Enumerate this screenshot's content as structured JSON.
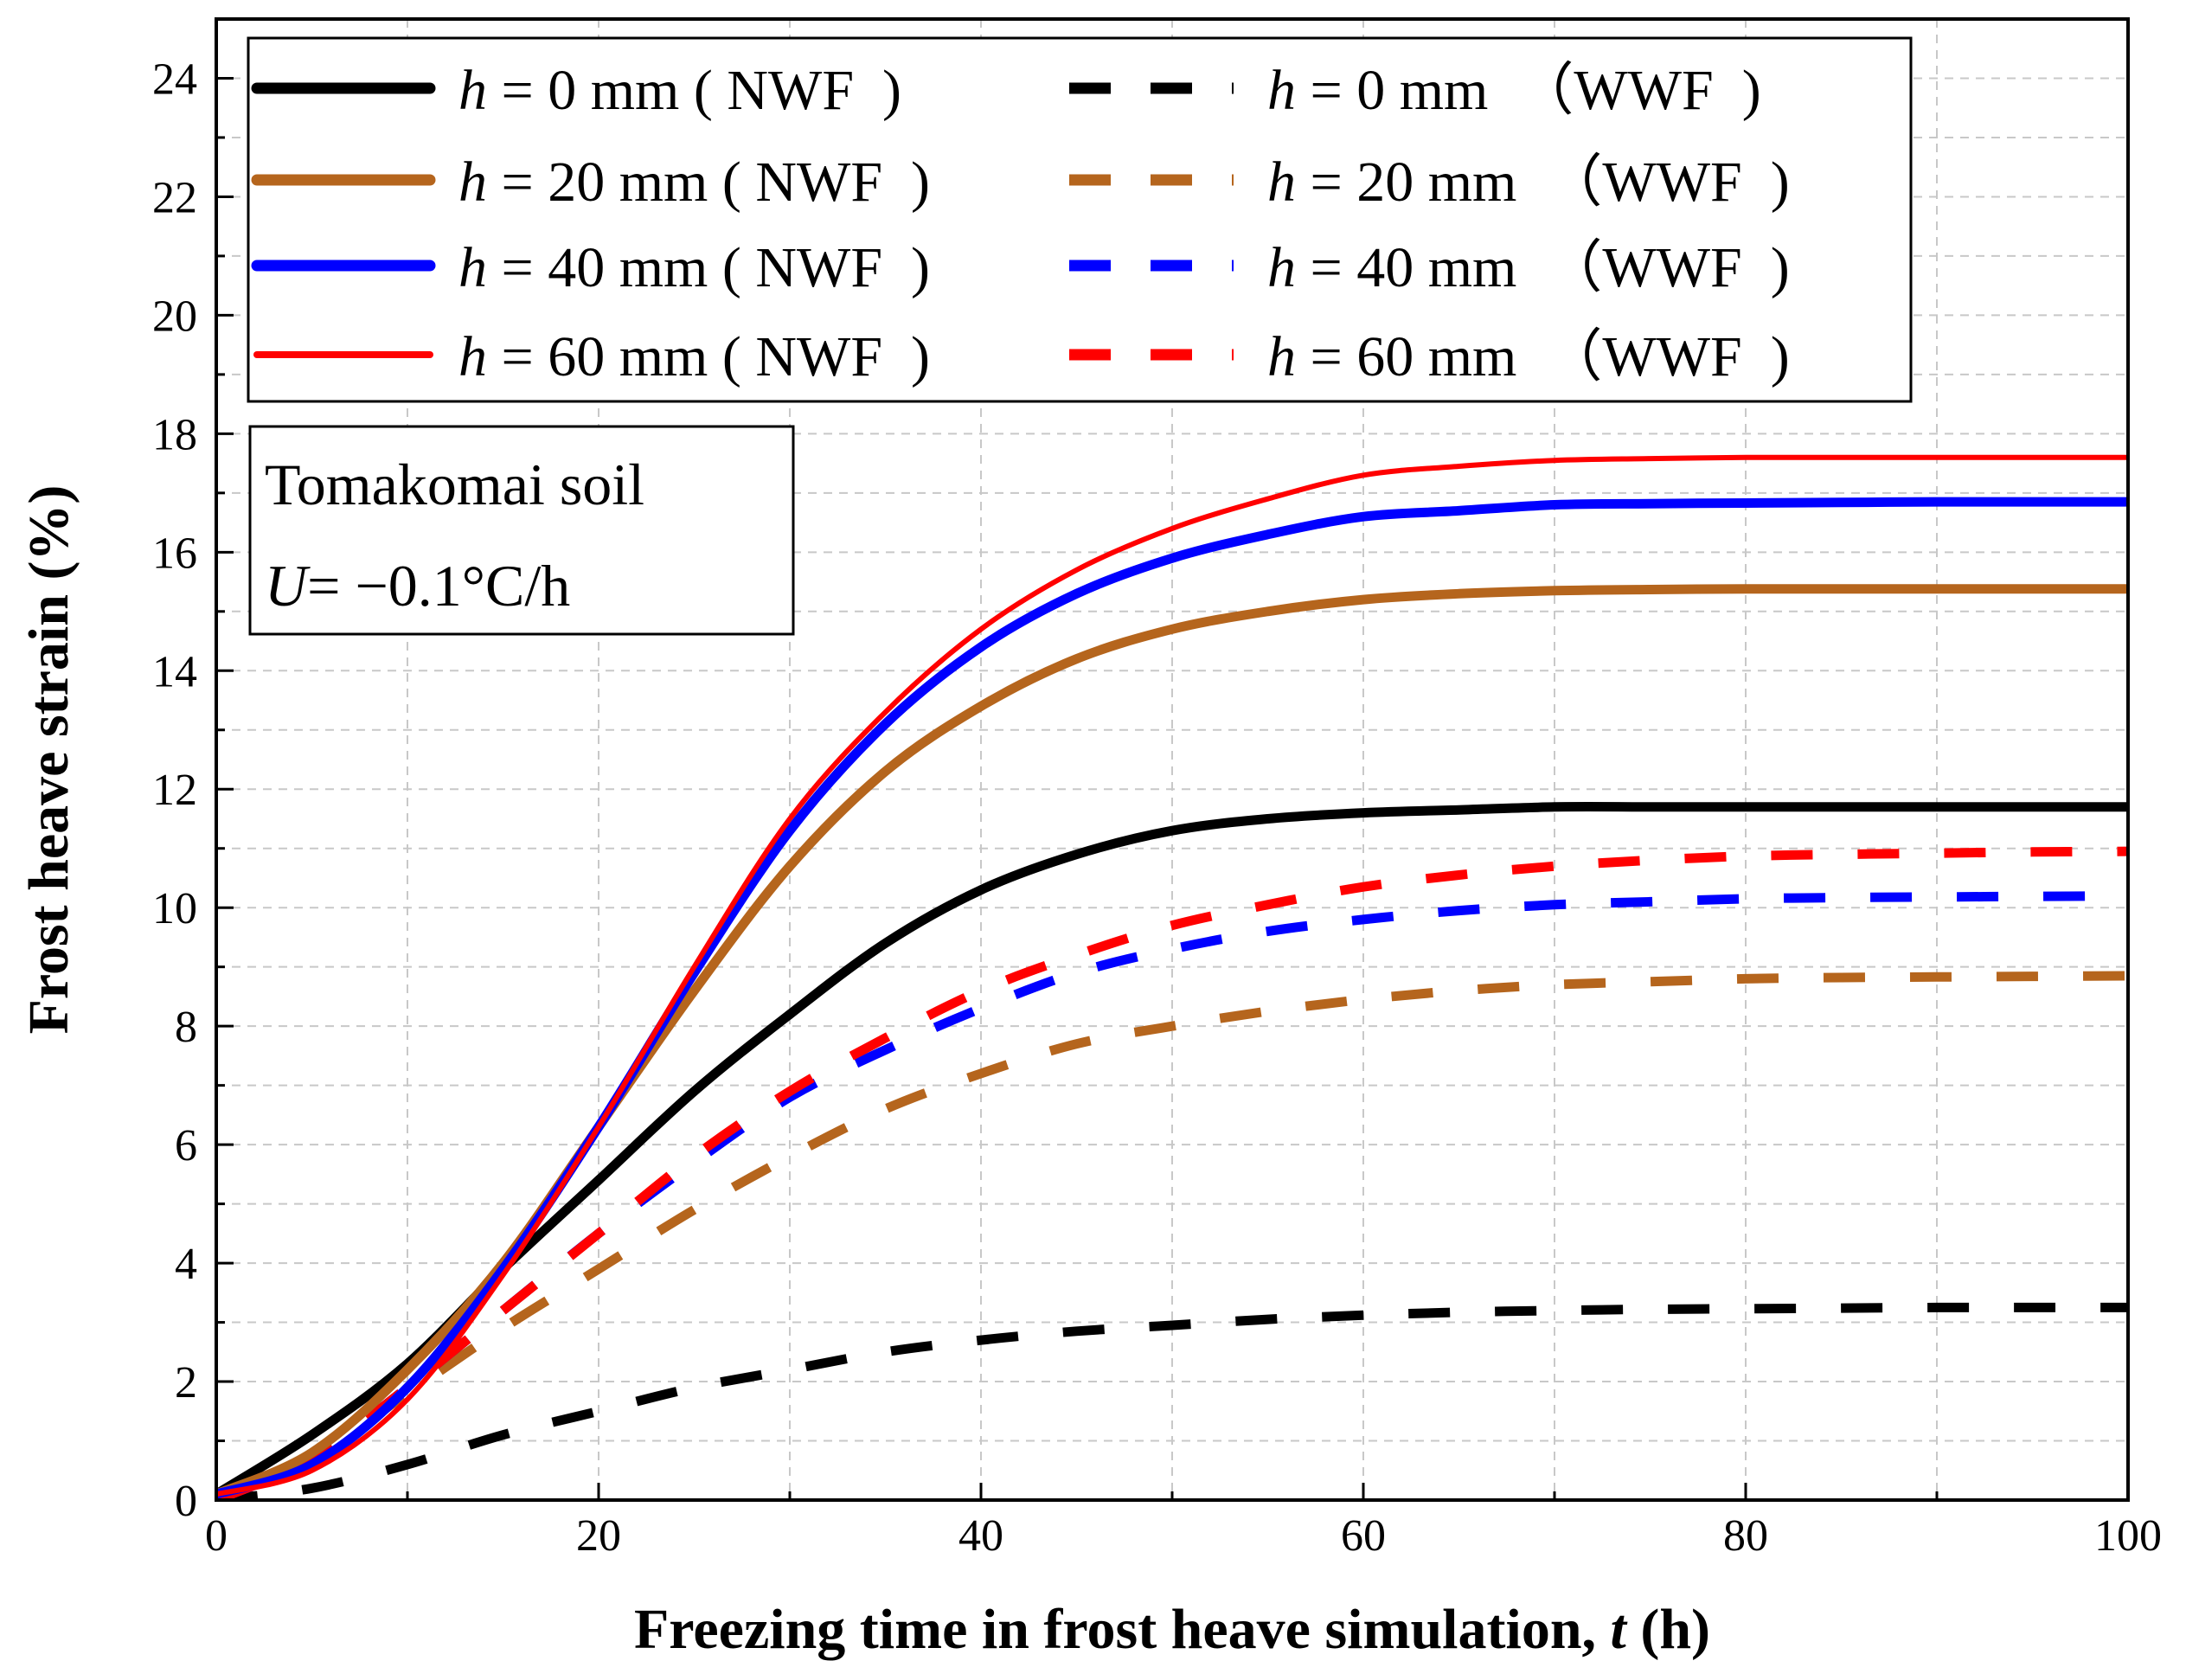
{
  "chart_data": {
    "type": "line",
    "xlabel_main": "Freezing time in frost heave simulation, ",
    "xlabel_var": "t",
    "xlabel_unit": " (h)",
    "ylabel": "Frost heave strain (%)",
    "xlim": [
      0,
      100
    ],
    "ylim": [
      0,
      25
    ],
    "x_ticks": [
      0,
      20,
      40,
      60,
      80,
      100
    ],
    "x_tick_labels": [
      "0",
      "20",
      "40",
      "60",
      "80",
      "100"
    ],
    "y_ticks": [
      0,
      2,
      4,
      6,
      8,
      10,
      12,
      14,
      16,
      18,
      20,
      22,
      24
    ],
    "y_tick_labels": [
      "0",
      "2",
      "4",
      "6",
      "8",
      "10",
      "12",
      "14",
      "16",
      "18",
      "20",
      "22",
      "24"
    ],
    "grid": true,
    "legend_position": "top-left",
    "annotation": {
      "line1": "Tomakomai soil",
      "line2_var": "U",
      "line2_rest": "= −0.1°C/h"
    },
    "x": [
      0,
      5,
      10,
      15,
      20,
      25,
      30,
      35,
      40,
      45,
      50,
      55,
      60,
      65,
      70,
      75,
      80,
      85,
      90,
      95,
      100
    ],
    "series": [
      {
        "name": "h = 0 mm ( NWF )",
        "legend_var": "h",
        "legend_rest": " = 0 mm ( NWF  )",
        "color": "#000000",
        "style": "solid",
        "width": 11,
        "values": [
          0.1,
          1.1,
          2.3,
          3.9,
          5.4,
          6.9,
          8.2,
          9.4,
          10.3,
          10.9,
          11.3,
          11.5,
          11.6,
          11.65,
          11.7,
          11.7,
          11.7,
          11.7,
          11.7,
          11.7,
          11.7
        ]
      },
      {
        "name": "h = 20 mm ( NWF )",
        "legend_var": "h",
        "legend_rest": " = 20 mm ( NWF  )",
        "color": "#b5651d",
        "style": "solid",
        "width": 11,
        "values": [
          0.1,
          0.8,
          2.2,
          4.0,
          6.3,
          8.6,
          10.7,
          12.3,
          13.4,
          14.2,
          14.7,
          15.0,
          15.2,
          15.3,
          15.35,
          15.37,
          15.38,
          15.38,
          15.38,
          15.38,
          15.38
        ]
      },
      {
        "name": "h = 40 mm ( NWF )",
        "legend_var": "h",
        "legend_rest": " = 40 mm ( NWF  )",
        "color": "#0000ff",
        "style": "solid",
        "width": 11,
        "values": [
          0.1,
          0.6,
          1.9,
          3.9,
          6.3,
          8.9,
          11.3,
          13.1,
          14.4,
          15.3,
          15.9,
          16.3,
          16.6,
          16.7,
          16.8,
          16.82,
          16.83,
          16.84,
          16.85,
          16.85,
          16.85
        ]
      },
      {
        "name": "h = 60 mm ( NWF )",
        "legend_var": "h",
        "legend_rest": " = 60 mm ( NWF  )",
        "color": "#ff0000",
        "style": "solid",
        "width": 6,
        "values": [
          0.1,
          0.5,
          1.7,
          3.8,
          6.3,
          9.0,
          11.5,
          13.3,
          14.7,
          15.7,
          16.4,
          16.9,
          17.3,
          17.45,
          17.55,
          17.58,
          17.6,
          17.6,
          17.6,
          17.6,
          17.6
        ]
      },
      {
        "name": "h = 0 mm (WWF )",
        "legend_var": "h",
        "legend_rest": " = 0 mm  （WWF  )",
        "color": "#000000",
        "style": "dashed",
        "width": 11,
        "values": [
          0.0,
          0.2,
          0.6,
          1.1,
          1.5,
          1.9,
          2.2,
          2.5,
          2.7,
          2.85,
          2.95,
          3.05,
          3.12,
          3.17,
          3.2,
          3.22,
          3.23,
          3.24,
          3.25,
          3.25,
          3.25
        ]
      },
      {
        "name": "h = 20 mm (WWF )",
        "legend_var": "h",
        "legend_rest": " = 20 mm  （WWF  )",
        "color": "#b5651d",
        "style": "dashed",
        "width": 11,
        "values": [
          0.0,
          0.7,
          1.8,
          2.9,
          3.9,
          4.9,
          5.8,
          6.6,
          7.2,
          7.7,
          8.0,
          8.25,
          8.45,
          8.6,
          8.7,
          8.75,
          8.8,
          8.82,
          8.83,
          8.84,
          8.85
        ]
      },
      {
        "name": "h = 40 mm (WWF )",
        "legend_var": "h",
        "legend_rest": " = 40 mm  （WWF  )",
        "color": "#0000ff",
        "style": "dashed",
        "width": 11,
        "values": [
          0.0,
          0.7,
          1.9,
          3.2,
          4.5,
          5.7,
          6.8,
          7.6,
          8.3,
          8.9,
          9.3,
          9.6,
          9.8,
          9.95,
          10.05,
          10.1,
          10.15,
          10.17,
          10.18,
          10.19,
          10.2
        ]
      },
      {
        "name": "h = 60 mm (WWF )",
        "legend_var": "h",
        "legend_rest": " = 60 mm  （WWF  )",
        "color": "#ff0000",
        "style": "dashed",
        "width": 11,
        "values": [
          0.0,
          0.7,
          1.9,
          3.2,
          4.5,
          5.8,
          6.9,
          7.8,
          8.6,
          9.2,
          9.7,
          10.05,
          10.35,
          10.55,
          10.7,
          10.8,
          10.87,
          10.9,
          10.92,
          10.94,
          10.95
        ]
      }
    ]
  }
}
